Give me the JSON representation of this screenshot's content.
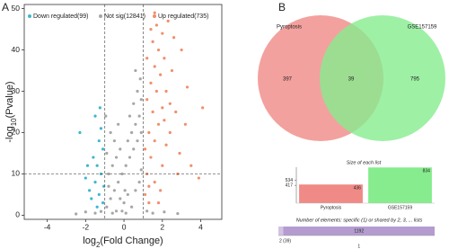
{
  "chart_data": [
    {
      "type": "scatter",
      "panel_label": "A",
      "xlabel": [
        "log",
        "2",
        "(Fold Change)"
      ],
      "ylabel": [
        "-log",
        "10",
        "(Pvalue)"
      ],
      "xlim": [
        -5.2,
        5.1
      ],
      "ylim": [
        -1,
        51
      ],
      "xticks": [
        -4,
        -2,
        0,
        2,
        4
      ],
      "yticks": [
        0,
        10,
        20,
        30,
        40,
        50
      ],
      "threshold_lines": {
        "x": [
          -1,
          1
        ],
        "y": [
          10
        ]
      },
      "legend": "top-left",
      "series": [
        {
          "name": "Not sig(12841)",
          "color": "#a6a6a6",
          "x": [
            -0.9,
            -0.7,
            -0.5,
            -0.3,
            -0.1,
            0.1,
            0.3,
            0.5,
            0.7,
            0.9,
            -0.8,
            -0.6,
            -0.4,
            -0.2,
            0.2,
            0.4,
            0.6,
            0.8,
            0.9,
            0.7,
            0.5,
            0.3,
            -0.5,
            -0.7,
            -0.9,
            -0.3,
            0.0,
            0.2,
            0.4,
            0.6,
            0.8,
            -0.2,
            -0.4,
            -0.6,
            -1.5,
            -2,
            -2.5,
            1.5,
            2.1,
            2.8,
            -1.2,
            1.2,
            -0.1,
            0.1,
            0.9,
            -0.8,
            0.6,
            0.85,
            -0.95,
            0.05
          ],
          "values": [
            2,
            4,
            6,
            8,
            10,
            12,
            14,
            16,
            18,
            20,
            10,
            12,
            14,
            16,
            18,
            20,
            22,
            24,
            28,
            30,
            27,
            24,
            18,
            20,
            15,
            22,
            3,
            5,
            2,
            6,
            8,
            4,
            1,
            0.5,
            0.5,
            0.8,
            0.3,
            0.5,
            0.8,
            0.4,
            0.9,
            1,
            1,
            0.5,
            11,
            7,
            35,
            33,
            24,
            6
          ]
        },
        {
          "name": "Down regulated(99)",
          "color": "#3db7cf",
          "x": [
            -1.1,
            -1.3,
            -1.5,
            -1.2,
            -1.4,
            -1.6,
            -1.1,
            -1.3,
            -1.8,
            -2.0,
            -1.2,
            -1.5,
            -1.7,
            -2.3,
            -1.9,
            -1.4,
            -1.05,
            -1.25
          ],
          "values": [
            3,
            5,
            8,
            10,
            12,
            14,
            16,
            18,
            6,
            9,
            21,
            24,
            4,
            20,
            12,
            2,
            7,
            26
          ]
        },
        {
          "name": "Up regulated(735)",
          "color": "#f08f6c",
          "x": [
            1.2,
            1.4,
            1.6,
            1.8,
            2.0,
            1.3,
            1.5,
            1.7,
            1.9,
            2.1,
            1.2,
            1.4,
            1.6,
            1.8,
            2.0,
            2.3,
            1.5,
            1.7,
            2.2,
            2.5,
            2.7,
            2.4,
            2.9,
            3.2,
            3.5,
            3.9,
            4.1,
            3.0,
            2.6,
            1.1,
            1.3,
            1.6,
            2.0,
            2.2,
            1.9,
            2.8,
            1.4,
            1.2,
            1.1,
            1.3,
            1.8,
            2.1,
            2.4,
            1.6,
            3.3
          ],
          "values": [
            10,
            14,
            18,
            22,
            26,
            20,
            25,
            30,
            34,
            38,
            28,
            32,
            36,
            40,
            44,
            47,
            42,
            46,
            30,
            35,
            25,
            20,
            15,
            22,
            12,
            9,
            26,
            40,
            43,
            5,
            7,
            8,
            12,
            17,
            6,
            10,
            45,
            38,
            16,
            3,
            3,
            23,
            27,
            49,
            31
          ]
        }
      ]
    },
    {
      "type": "venn",
      "panel_label": "B",
      "sets": [
        {
          "name": "Pyroptosis",
          "color": "#f08a86",
          "size": 397
        },
        {
          "name": "GSE157159",
          "color": "#86ec8e",
          "size": 795
        }
      ],
      "intersection": 39
    },
    {
      "type": "bar",
      "title": "Size of each list",
      "categories": [
        "Pyroptosis",
        "GSE157159"
      ],
      "values": [
        436,
        834
      ],
      "colors": [
        "#f08a86",
        "#86ec8e"
      ],
      "ylim": [
        0,
        840
      ],
      "yticks": [
        417,
        534
      ]
    },
    {
      "type": "bar",
      "orientation": "horizontal",
      "title": "Number of elements: specific (1) or shared by 2, 3, ... lists",
      "categories": [
        "2 (39)",
        "1"
      ],
      "values": [
        39,
        1192
      ],
      "colors": [
        "#d3c2e3",
        "#b49cd0"
      ],
      "xlim": [
        0,
        1231
      ]
    }
  ]
}
